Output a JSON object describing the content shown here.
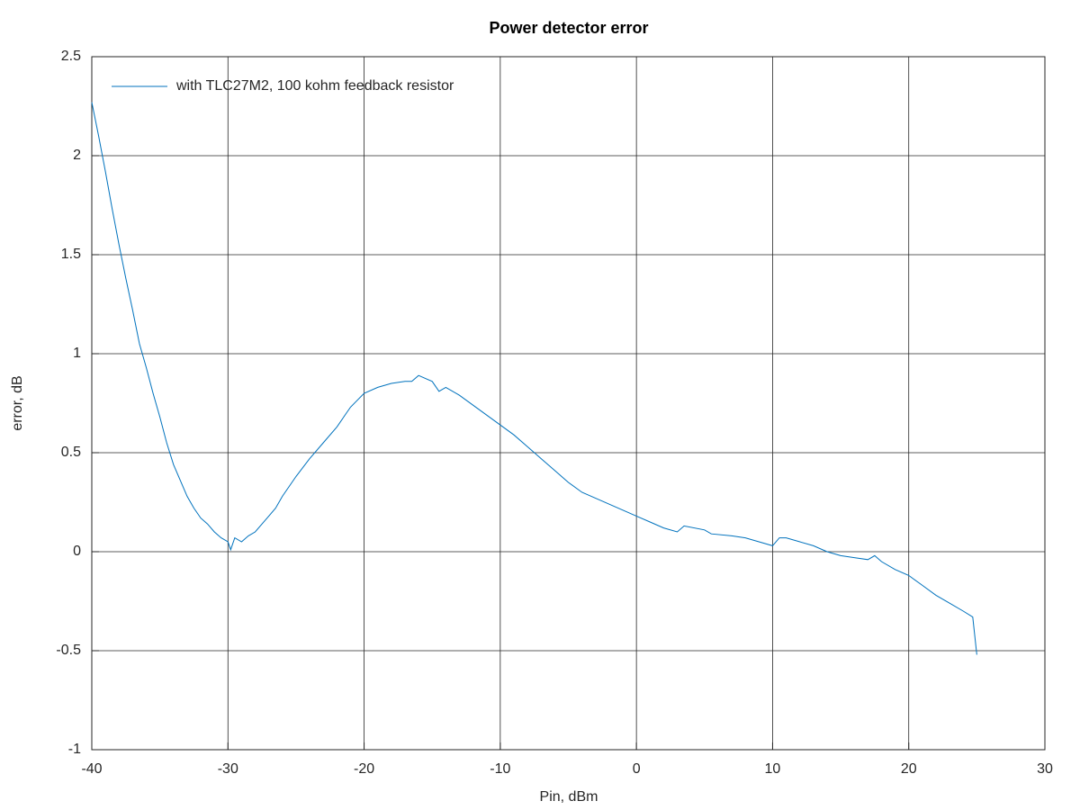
{
  "chart_data": {
    "type": "line",
    "title": "Power detector error",
    "x_label": "Pin, dBm",
    "y_label": "error, dB",
    "x": [
      -40,
      -39.5,
      -39,
      -38.5,
      -38,
      -37.5,
      -37,
      -36.5,
      -36,
      -35.5,
      -35,
      -34.5,
      -34,
      -33.5,
      -33,
      -32.5,
      -32,
      -31.5,
      -31,
      -30.5,
      -30,
      -29.8,
      -29.5,
      -29,
      -28.5,
      -28,
      -27.5,
      -27,
      -26.5,
      -26,
      -25,
      -24,
      -23,
      -22,
      -21,
      -20,
      -19,
      -18,
      -17,
      -16.5,
      -16,
      -15,
      -14.5,
      -14,
      -13,
      -12,
      -11,
      -10,
      -9,
      -8,
      -7,
      -6,
      -5,
      -4,
      -3,
      -2,
      -1,
      0,
      1,
      2,
      3,
      3.5,
      5,
      5.5,
      7,
      8,
      9,
      10,
      10.5,
      11,
      12,
      13,
      14,
      15,
      16,
      17,
      17.5,
      18,
      19,
      20,
      21,
      22,
      23,
      24,
      24.7,
      25
    ],
    "series": [
      {
        "name": "with TLC27M2, 100 kohm feedback resistor",
        "color": "#0072bd",
        "values": [
          2.27,
          2.1,
          1.92,
          1.73,
          1.55,
          1.38,
          1.22,
          1.05,
          0.93,
          0.8,
          0.68,
          0.55,
          0.44,
          0.36,
          0.28,
          0.22,
          0.17,
          0.14,
          0.1,
          0.07,
          0.05,
          0.01,
          0.07,
          0.05,
          0.08,
          0.1,
          0.14,
          0.18,
          0.22,
          0.28,
          0.38,
          0.47,
          0.55,
          0.63,
          0.73,
          0.8,
          0.83,
          0.85,
          0.86,
          0.86,
          0.89,
          0.86,
          0.81,
          0.83,
          0.79,
          0.74,
          0.69,
          0.64,
          0.59,
          0.53,
          0.47,
          0.41,
          0.35,
          0.3,
          0.27,
          0.24,
          0.21,
          0.18,
          0.15,
          0.12,
          0.1,
          0.13,
          0.11,
          0.09,
          0.08,
          0.07,
          0.05,
          0.03,
          0.07,
          0.07,
          0.05,
          0.03,
          0.0,
          -0.02,
          -0.03,
          -0.04,
          -0.02,
          -0.05,
          -0.09,
          -0.12,
          -0.17,
          -0.22,
          -0.26,
          -0.3,
          -0.33,
          -0.52
        ]
      }
    ],
    "xlim": [
      -40,
      30
    ],
    "xticks": [
      -40,
      -30,
      -20,
      -10,
      0,
      10,
      20,
      30
    ],
    "ylim": [
      -1,
      2.5
    ],
    "yticks": [
      -1,
      -0.5,
      0,
      0.5,
      1,
      1.5,
      2,
      2.5
    ],
    "grid": true,
    "legend_position": "northwest"
  }
}
